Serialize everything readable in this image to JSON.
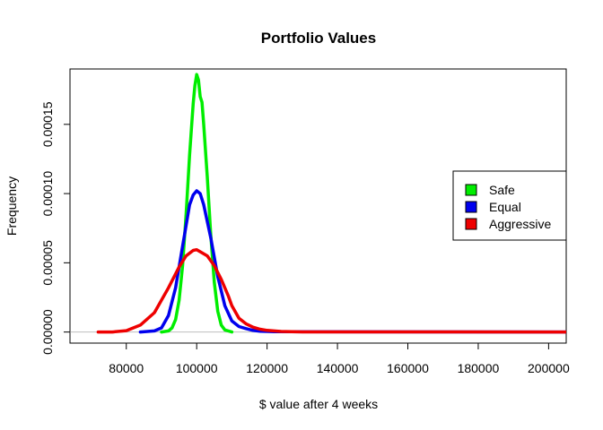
{
  "chart_data": {
    "type": "line",
    "title": "Portfolio Values",
    "xlabel": "$ value after 4 weeks",
    "ylabel": "Frequency",
    "xlim": [
      64000,
      205000
    ],
    "ylim": [
      -8e-06,
      0.00019
    ],
    "x_ticks": [
      80000,
      100000,
      120000,
      140000,
      160000,
      180000,
      200000
    ],
    "x_tick_labels": [
      "80000",
      "100000",
      "120000",
      "140000",
      "160000",
      "180000",
      "200000"
    ],
    "y_ticks": [
      0,
      5e-05,
      0.0001,
      0.00015
    ],
    "y_tick_labels": [
      "0.00000",
      "0.00005",
      "0.00010",
      "0.00015"
    ],
    "baseline": 0,
    "baseline_color": "#bebebe",
    "grid": false,
    "legend_position": "right",
    "series": [
      {
        "name": "Safe",
        "color": "#00ee00",
        "points": [
          [
            90000,
            0
          ],
          [
            92000,
            8e-07
          ],
          [
            93000,
            3e-06
          ],
          [
            94000,
            9e-06
          ],
          [
            95000,
            2.3e-05
          ],
          [
            96000,
            4.8e-05
          ],
          [
            97000,
            8.5e-05
          ],
          [
            98000,
            0.000128
          ],
          [
            99000,
            0.000165
          ],
          [
            99500,
            0.000178
          ],
          [
            100000,
            0.000186
          ],
          [
            100500,
            0.000182
          ],
          [
            101000,
            0.00017
          ],
          [
            101500,
            0.000166
          ],
          [
            102000,
            0.00015
          ],
          [
            103000,
            0.000112
          ],
          [
            104000,
            7e-05
          ],
          [
            105000,
            3.6e-05
          ],
          [
            106000,
            1.5e-05
          ],
          [
            107000,
            5e-06
          ],
          [
            108000,
            1.5e-06
          ],
          [
            110000,
            0
          ]
        ]
      },
      {
        "name": "Equal",
        "color": "#0000ee",
        "points": [
          [
            84000,
            0
          ],
          [
            88000,
            8e-07
          ],
          [
            90000,
            3e-06
          ],
          [
            92000,
            1.2e-05
          ],
          [
            94000,
            3.2e-05
          ],
          [
            96000,
            6.2e-05
          ],
          [
            98000,
            9.2e-05
          ],
          [
            99000,
            9.9e-05
          ],
          [
            100000,
            0.000102
          ],
          [
            101000,
            0.0001
          ],
          [
            102000,
            9.2e-05
          ],
          [
            104000,
            6.8e-05
          ],
          [
            106000,
            4e-05
          ],
          [
            108000,
            1.9e-05
          ],
          [
            110000,
            8e-06
          ],
          [
            112000,
            4e-06
          ],
          [
            114000,
            2.5e-06
          ],
          [
            116000,
            1.2e-06
          ],
          [
            118000,
            6e-07
          ],
          [
            122000,
            2e-07
          ],
          [
            205000,
            0
          ]
        ]
      },
      {
        "name": "Aggressive",
        "color": "#ee0000",
        "points": [
          [
            72000,
            0
          ],
          [
            76000,
            0
          ],
          [
            80000,
            1e-06
          ],
          [
            84000,
            5e-06
          ],
          [
            88000,
            1.4e-05
          ],
          [
            92000,
            3.2e-05
          ],
          [
            95000,
            4.7e-05
          ],
          [
            97000,
            5.5e-05
          ],
          [
            99000,
            5.9e-05
          ],
          [
            100000,
            5.95e-05
          ],
          [
            101000,
            5.8e-05
          ],
          [
            103000,
            5.5e-05
          ],
          [
            105000,
            4.8e-05
          ],
          [
            107000,
            3.8e-05
          ],
          [
            109000,
            2.6e-05
          ],
          [
            110000,
            1.9e-05
          ],
          [
            112000,
            1e-05
          ],
          [
            114000,
            6e-06
          ],
          [
            116000,
            3.5e-06
          ],
          [
            118000,
            2e-06
          ],
          [
            120000,
            1.2e-06
          ],
          [
            124000,
            4e-07
          ],
          [
            130000,
            1e-07
          ],
          [
            205000,
            0
          ]
        ]
      }
    ]
  }
}
